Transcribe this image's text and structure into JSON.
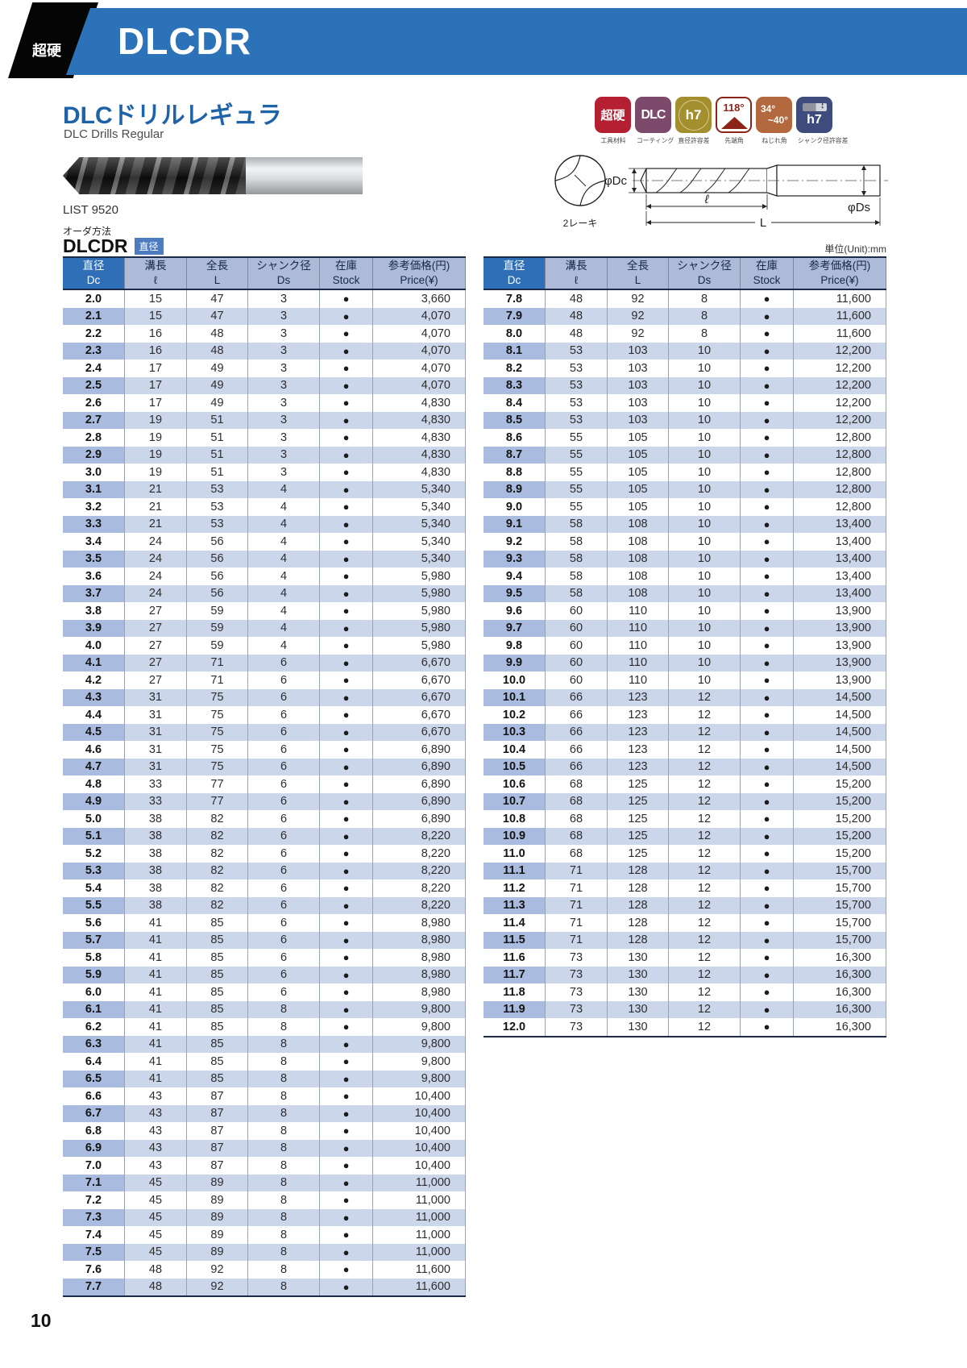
{
  "header": {
    "corner_label": "超硬",
    "model": "DLCDR"
  },
  "title": {
    "jp": "DLCドリルレギュラ",
    "en": "DLC Drills Regular"
  },
  "badges": [
    {
      "lines": [
        "超硬"
      ],
      "label": "工具材料"
    },
    {
      "lines": [
        "DLC"
      ],
      "label": "コーティング"
    },
    {
      "lines": [
        "h7"
      ],
      "label": "直径許容差"
    },
    {
      "lines": [
        "118°"
      ],
      "label": "先端角"
    },
    {
      "lines": [
        "34°",
        "~40°"
      ],
      "label": "ねじれ角"
    },
    {
      "lines": [
        "h7"
      ],
      "label": "シャンク径許容差"
    }
  ],
  "diagram": {
    "flute_label": "2レーキ",
    "dc": "φDc",
    "ds": "φDs",
    "flute_len": "ℓ",
    "overall_len": "L"
  },
  "list_no": "LIST 9520",
  "order": {
    "label": "オーダ方法",
    "model": "DLCDR",
    "badge": "直径"
  },
  "unit_note": "単位(Unit):mm",
  "colors": {
    "accent_blue": "#2b72b8",
    "header_cell_blue": "#2e6fb7",
    "stripe": "#ccd6eb",
    "stripe_dark": "#a9bcdf"
  },
  "table": {
    "headers": [
      {
        "jp": "直径",
        "en": "Dc"
      },
      {
        "jp": "溝長",
        "en": "ℓ"
      },
      {
        "jp": "全長",
        "en": "L"
      },
      {
        "jp": "シャンク径",
        "en": "Ds"
      },
      {
        "jp": "在庫",
        "en": "Stock"
      },
      {
        "jp": "参考価格(円)",
        "en": "Price(¥)"
      }
    ],
    "stock_symbol": "●",
    "left_rows": [
      [
        "2.0",
        "15",
        "47",
        "3",
        "●",
        "3,660"
      ],
      [
        "2.1",
        "15",
        "47",
        "3",
        "●",
        "4,070"
      ],
      [
        "2.2",
        "16",
        "48",
        "3",
        "●",
        "4,070"
      ],
      [
        "2.3",
        "16",
        "48",
        "3",
        "●",
        "4,070"
      ],
      [
        "2.4",
        "17",
        "49",
        "3",
        "●",
        "4,070"
      ],
      [
        "2.5",
        "17",
        "49",
        "3",
        "●",
        "4,070"
      ],
      [
        "2.6",
        "17",
        "49",
        "3",
        "●",
        "4,830"
      ],
      [
        "2.7",
        "19",
        "51",
        "3",
        "●",
        "4,830"
      ],
      [
        "2.8",
        "19",
        "51",
        "3",
        "●",
        "4,830"
      ],
      [
        "2.9",
        "19",
        "51",
        "3",
        "●",
        "4,830"
      ],
      [
        "3.0",
        "19",
        "51",
        "3",
        "●",
        "4,830"
      ],
      [
        "3.1",
        "21",
        "53",
        "4",
        "●",
        "5,340"
      ],
      [
        "3.2",
        "21",
        "53",
        "4",
        "●",
        "5,340"
      ],
      [
        "3.3",
        "21",
        "53",
        "4",
        "●",
        "5,340"
      ],
      [
        "3.4",
        "24",
        "56",
        "4",
        "●",
        "5,340"
      ],
      [
        "3.5",
        "24",
        "56",
        "4",
        "●",
        "5,340"
      ],
      [
        "3.6",
        "24",
        "56",
        "4",
        "●",
        "5,980"
      ],
      [
        "3.7",
        "24",
        "56",
        "4",
        "●",
        "5,980"
      ],
      [
        "3.8",
        "27",
        "59",
        "4",
        "●",
        "5,980"
      ],
      [
        "3.9",
        "27",
        "59",
        "4",
        "●",
        "5,980"
      ],
      [
        "4.0",
        "27",
        "59",
        "4",
        "●",
        "5,980"
      ],
      [
        "4.1",
        "27",
        "71",
        "6",
        "●",
        "6,670"
      ],
      [
        "4.2",
        "27",
        "71",
        "6",
        "●",
        "6,670"
      ],
      [
        "4.3",
        "31",
        "75",
        "6",
        "●",
        "6,670"
      ],
      [
        "4.4",
        "31",
        "75",
        "6",
        "●",
        "6,670"
      ],
      [
        "4.5",
        "31",
        "75",
        "6",
        "●",
        "6,670"
      ],
      [
        "4.6",
        "31",
        "75",
        "6",
        "●",
        "6,890"
      ],
      [
        "4.7",
        "31",
        "75",
        "6",
        "●",
        "6,890"
      ],
      [
        "4.8",
        "33",
        "77",
        "6",
        "●",
        "6,890"
      ],
      [
        "4.9",
        "33",
        "77",
        "6",
        "●",
        "6,890"
      ],
      [
        "5.0",
        "38",
        "82",
        "6",
        "●",
        "6,890"
      ],
      [
        "5.1",
        "38",
        "82",
        "6",
        "●",
        "8,220"
      ],
      [
        "5.2",
        "38",
        "82",
        "6",
        "●",
        "8,220"
      ],
      [
        "5.3",
        "38",
        "82",
        "6",
        "●",
        "8,220"
      ],
      [
        "5.4",
        "38",
        "82",
        "6",
        "●",
        "8,220"
      ],
      [
        "5.5",
        "38",
        "82",
        "6",
        "●",
        "8,220"
      ],
      [
        "5.6",
        "41",
        "85",
        "6",
        "●",
        "8,980"
      ],
      [
        "5.7",
        "41",
        "85",
        "6",
        "●",
        "8,980"
      ],
      [
        "5.8",
        "41",
        "85",
        "6",
        "●",
        "8,980"
      ],
      [
        "5.9",
        "41",
        "85",
        "6",
        "●",
        "8,980"
      ],
      [
        "6.0",
        "41",
        "85",
        "6",
        "●",
        "8,980"
      ],
      [
        "6.1",
        "41",
        "85",
        "8",
        "●",
        "9,800"
      ],
      [
        "6.2",
        "41",
        "85",
        "8",
        "●",
        "9,800"
      ],
      [
        "6.3",
        "41",
        "85",
        "8",
        "●",
        "9,800"
      ],
      [
        "6.4",
        "41",
        "85",
        "8",
        "●",
        "9,800"
      ],
      [
        "6.5",
        "41",
        "85",
        "8",
        "●",
        "9,800"
      ],
      [
        "6.6",
        "43",
        "87",
        "8",
        "●",
        "10,400"
      ],
      [
        "6.7",
        "43",
        "87",
        "8",
        "●",
        "10,400"
      ],
      [
        "6.8",
        "43",
        "87",
        "8",
        "●",
        "10,400"
      ],
      [
        "6.9",
        "43",
        "87",
        "8",
        "●",
        "10,400"
      ],
      [
        "7.0",
        "43",
        "87",
        "8",
        "●",
        "10,400"
      ],
      [
        "7.1",
        "45",
        "89",
        "8",
        "●",
        "11,000"
      ],
      [
        "7.2",
        "45",
        "89",
        "8",
        "●",
        "11,000"
      ],
      [
        "7.3",
        "45",
        "89",
        "8",
        "●",
        "11,000"
      ],
      [
        "7.4",
        "45",
        "89",
        "8",
        "●",
        "11,000"
      ],
      [
        "7.5",
        "45",
        "89",
        "8",
        "●",
        "11,000"
      ],
      [
        "7.6",
        "48",
        "92",
        "8",
        "●",
        "11,600"
      ],
      [
        "7.7",
        "48",
        "92",
        "8",
        "●",
        "11,600"
      ]
    ],
    "right_rows": [
      [
        "7.8",
        "48",
        "92",
        "8",
        "●",
        "11,600"
      ],
      [
        "7.9",
        "48",
        "92",
        "8",
        "●",
        "11,600"
      ],
      [
        "8.0",
        "48",
        "92",
        "8",
        "●",
        "11,600"
      ],
      [
        "8.1",
        "53",
        "103",
        "10",
        "●",
        "12,200"
      ],
      [
        "8.2",
        "53",
        "103",
        "10",
        "●",
        "12,200"
      ],
      [
        "8.3",
        "53",
        "103",
        "10",
        "●",
        "12,200"
      ],
      [
        "8.4",
        "53",
        "103",
        "10",
        "●",
        "12,200"
      ],
      [
        "8.5",
        "53",
        "103",
        "10",
        "●",
        "12,200"
      ],
      [
        "8.6",
        "55",
        "105",
        "10",
        "●",
        "12,800"
      ],
      [
        "8.7",
        "55",
        "105",
        "10",
        "●",
        "12,800"
      ],
      [
        "8.8",
        "55",
        "105",
        "10",
        "●",
        "12,800"
      ],
      [
        "8.9",
        "55",
        "105",
        "10",
        "●",
        "12,800"
      ],
      [
        "9.0",
        "55",
        "105",
        "10",
        "●",
        "12,800"
      ],
      [
        "9.1",
        "58",
        "108",
        "10",
        "●",
        "13,400"
      ],
      [
        "9.2",
        "58",
        "108",
        "10",
        "●",
        "13,400"
      ],
      [
        "9.3",
        "58",
        "108",
        "10",
        "●",
        "13,400"
      ],
      [
        "9.4",
        "58",
        "108",
        "10",
        "●",
        "13,400"
      ],
      [
        "9.5",
        "58",
        "108",
        "10",
        "●",
        "13,400"
      ],
      [
        "9.6",
        "60",
        "110",
        "10",
        "●",
        "13,900"
      ],
      [
        "9.7",
        "60",
        "110",
        "10",
        "●",
        "13,900"
      ],
      [
        "9.8",
        "60",
        "110",
        "10",
        "●",
        "13,900"
      ],
      [
        "9.9",
        "60",
        "110",
        "10",
        "●",
        "13,900"
      ],
      [
        "10.0",
        "60",
        "110",
        "10",
        "●",
        "13,900"
      ],
      [
        "10.1",
        "66",
        "123",
        "12",
        "●",
        "14,500"
      ],
      [
        "10.2",
        "66",
        "123",
        "12",
        "●",
        "14,500"
      ],
      [
        "10.3",
        "66",
        "123",
        "12",
        "●",
        "14,500"
      ],
      [
        "10.4",
        "66",
        "123",
        "12",
        "●",
        "14,500"
      ],
      [
        "10.5",
        "66",
        "123",
        "12",
        "●",
        "14,500"
      ],
      [
        "10.6",
        "68",
        "125",
        "12",
        "●",
        "15,200"
      ],
      [
        "10.7",
        "68",
        "125",
        "12",
        "●",
        "15,200"
      ],
      [
        "10.8",
        "68",
        "125",
        "12",
        "●",
        "15,200"
      ],
      [
        "10.9",
        "68",
        "125",
        "12",
        "●",
        "15,200"
      ],
      [
        "11.0",
        "68",
        "125",
        "12",
        "●",
        "15,200"
      ],
      [
        "11.1",
        "71",
        "128",
        "12",
        "●",
        "15,700"
      ],
      [
        "11.2",
        "71",
        "128",
        "12",
        "●",
        "15,700"
      ],
      [
        "11.3",
        "71",
        "128",
        "12",
        "●",
        "15,700"
      ],
      [
        "11.4",
        "71",
        "128",
        "12",
        "●",
        "15,700"
      ],
      [
        "11.5",
        "71",
        "128",
        "12",
        "●",
        "15,700"
      ],
      [
        "11.6",
        "73",
        "130",
        "12",
        "●",
        "16,300"
      ],
      [
        "11.7",
        "73",
        "130",
        "12",
        "●",
        "16,300"
      ],
      [
        "11.8",
        "73",
        "130",
        "12",
        "●",
        "16,300"
      ],
      [
        "11.9",
        "73",
        "130",
        "12",
        "●",
        "16,300"
      ],
      [
        "12.0",
        "73",
        "130",
        "12",
        "●",
        "16,300"
      ]
    ]
  },
  "page_number": "10"
}
